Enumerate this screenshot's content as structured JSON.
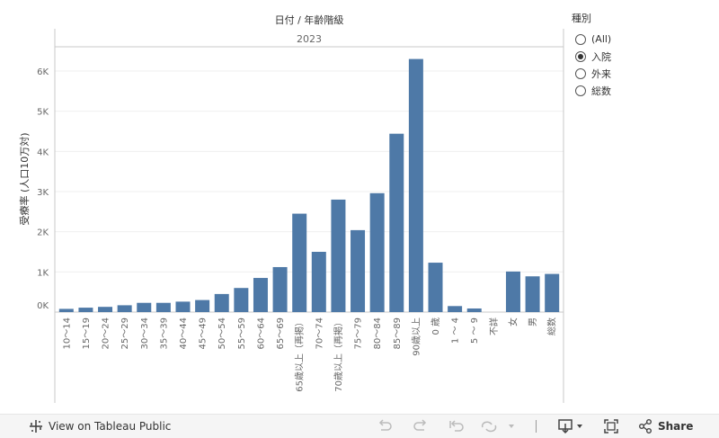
{
  "chart_data": {
    "type": "bar",
    "title": "日付 / 年齢階級",
    "column_header": "2023",
    "ylabel": "受療率 (人口10万対)",
    "ylim": [
      0,
      6900
    ],
    "yticks": [
      0,
      1000,
      2000,
      3000,
      4000,
      5000,
      6000
    ],
    "ytick_labels": [
      "0K",
      "1K",
      "2K",
      "3K",
      "4K",
      "5K",
      "6K"
    ],
    "bar_color": "#4e79a7",
    "categories": [
      "10～14",
      "15～19",
      "20～24",
      "25～29",
      "30～34",
      "35～39",
      "40～44",
      "45～49",
      "50～54",
      "55～59",
      "60～64",
      "65～69",
      "65歳以上（再掲）",
      "70～74",
      "70歳以上（再掲）",
      "75～79",
      "80～84",
      "85～89",
      "90歳以上",
      "0 歳",
      "1 ～ 4",
      "5 ～ 9",
      "不詳",
      "女",
      "男",
      "総数"
    ],
    "values": [
      80,
      110,
      130,
      170,
      230,
      230,
      260,
      300,
      450,
      600,
      850,
      1120,
      2450,
      1500,
      2800,
      2040,
      2960,
      4440,
      6300,
      1230,
      150,
      90,
      0,
      1010,
      890,
      950
    ]
  },
  "legend": {
    "title": "種別",
    "items": [
      {
        "label": "(All)",
        "checked": false
      },
      {
        "label": "入院",
        "checked": true
      },
      {
        "label": "外来",
        "checked": false
      },
      {
        "label": "総数",
        "checked": false
      }
    ]
  },
  "toolbar": {
    "view_label": "View on Tableau Public",
    "share_label": "Share"
  }
}
